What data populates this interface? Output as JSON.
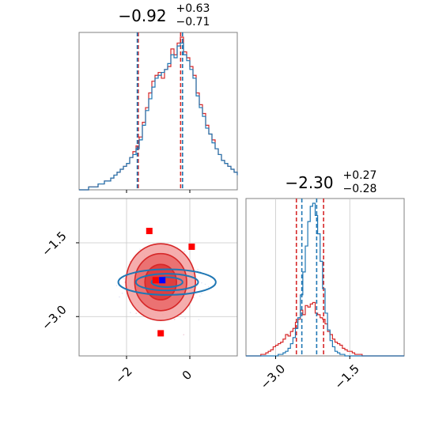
{
  "chart_data": [
    {
      "type": "histogram",
      "panel": "top-left (parameter 1 marginal)",
      "title_main": "−0.92",
      "title_sup": "+0.63",
      "title_sub": "−0.71",
      "xlim": [
        -3.5,
        1.5
      ],
      "bins_x_start": -3.5,
      "bin_width": 0.1,
      "series": [
        {
          "color": "#d62728",
          "counts": [
            0,
            0,
            0,
            1,
            1,
            1,
            2,
            2,
            3,
            3,
            4,
            5,
            6,
            7,
            8,
            9,
            11,
            13,
            15,
            18,
            23,
            28,
            33,
            37,
            39,
            40,
            38,
            41,
            42,
            48,
            46,
            50,
            52,
            47,
            45,
            42,
            39,
            33,
            29,
            26,
            22,
            19,
            17,
            14,
            12,
            10,
            9,
            8,
            7,
            6,
            5,
            4,
            4,
            3,
            3,
            2,
            2,
            1,
            1,
            1,
            0,
            0,
            0,
            0,
            0,
            0,
            0,
            0,
            0,
            0,
            0,
            0,
            0,
            0,
            0,
            0,
            0,
            0,
            0,
            0
          ],
          "quantile_lines_x": [
            -1.63,
            -0.29
          ]
        },
        {
          "color": "#1f77b4",
          "counts": [
            0,
            0,
            0,
            1,
            1,
            1,
            2,
            2,
            3,
            3,
            4,
            5,
            6,
            7,
            8,
            9,
            11,
            12,
            14,
            17,
            22,
            27,
            31,
            35,
            38,
            39,
            40,
            41,
            43,
            46,
            45,
            49,
            50,
            46,
            44,
            41,
            38,
            32,
            28,
            25,
            21,
            19,
            16,
            14,
            12,
            10,
            9,
            8,
            7,
            6,
            5,
            4,
            4,
            3,
            3,
            2,
            2,
            1,
            1,
            1,
            0,
            0,
            0,
            0,
            0,
            0,
            0,
            0,
            0,
            0,
            0,
            0,
            0,
            0,
            0,
            0,
            0,
            0,
            0,
            0
          ],
          "quantile_lines_x": [
            -1.66,
            -0.23
          ]
        }
      ]
    },
    {
      "type": "histogram",
      "panel": "bottom-right (parameter 2 marginal)",
      "title_main": "−2.30",
      "title_sup": "+0.27",
      "title_sub": "−0.28",
      "xlim": [
        -3.6,
        -0.4
      ],
      "xticks": [
        "−3.0",
        "−1.5"
      ],
      "xtick_values": [
        -3.0,
        -1.5
      ],
      "bins_x_start": -3.6,
      "bin_width": 0.05,
      "series": [
        {
          "color": "#d62728",
          "counts": [
            0,
            0,
            0,
            0,
            0,
            0,
            1,
            1,
            2,
            3,
            4,
            6,
            7,
            8,
            9,
            11,
            14,
            13,
            16,
            18,
            22,
            24,
            30,
            27,
            33,
            32,
            34,
            35,
            28,
            27,
            25,
            24,
            21,
            16,
            14,
            11,
            9,
            8,
            7,
            5,
            4,
            3,
            3,
            2,
            1,
            1,
            1,
            0,
            0,
            0,
            0,
            0,
            0,
            0,
            0,
            0,
            0,
            0,
            0,
            0,
            0,
            0,
            0,
            0
          ],
          "quantile_lines_x": [
            -2.58,
            -2.03
          ]
        },
        {
          "color": "#1f77b4",
          "counts": [
            0,
            0,
            0,
            0,
            0,
            0,
            0,
            0,
            0,
            0,
            0,
            0,
            0,
            1,
            1,
            2,
            3,
            5,
            8,
            12,
            18,
            25,
            40,
            55,
            72,
            88,
            98,
            100,
            92,
            80,
            62,
            44,
            28,
            17,
            10,
            6,
            3,
            2,
            1,
            1,
            0,
            0,
            0,
            0,
            0,
            0,
            0,
            0,
            0,
            0,
            0,
            0,
            0,
            0,
            0,
            0,
            0,
            0,
            0,
            0,
            0,
            0,
            0,
            0
          ],
          "quantile_lines_x": [
            -2.47,
            -2.17
          ]
        }
      ]
    },
    {
      "type": "scatter",
      "panel": "bottom-left (joint 2D density)",
      "xlim": [
        -3.5,
        1.5
      ],
      "ylim": [
        -3.8,
        -0.6
      ],
      "xticks": [
        "−2",
        "0"
      ],
      "xtick_values": [
        -2,
        0
      ],
      "yticks": [
        "−1.5",
        "−3.0"
      ],
      "ytick_values": [
        -1.5,
        -3.0
      ],
      "grid_lines_x": [
        -2,
        0
      ],
      "grid_lines_y": [
        -1.5,
        -3.0
      ],
      "contour_center": [
        -0.92,
        -2.3
      ],
      "red_contour_rx": [
        1.1,
        0.82,
        0.5
      ],
      "red_contour_ry": [
        0.78,
        0.58,
        0.36
      ],
      "blue_contour_rx": [
        1.88,
        1.2,
        0.6
      ],
      "blue_contour_ry": [
        0.26,
        0.17,
        0.1
      ],
      "red_markers": [
        {
          "x": -1.28,
          "y": -1.26
        },
        {
          "x": 0.06,
          "y": -1.58
        },
        {
          "x": -1.08,
          "y": -2.26
        },
        {
          "x": -0.92,
          "y": -3.34
        }
      ],
      "blue_marker": {
        "x": -0.87,
        "y": -2.26
      }
    }
  ]
}
